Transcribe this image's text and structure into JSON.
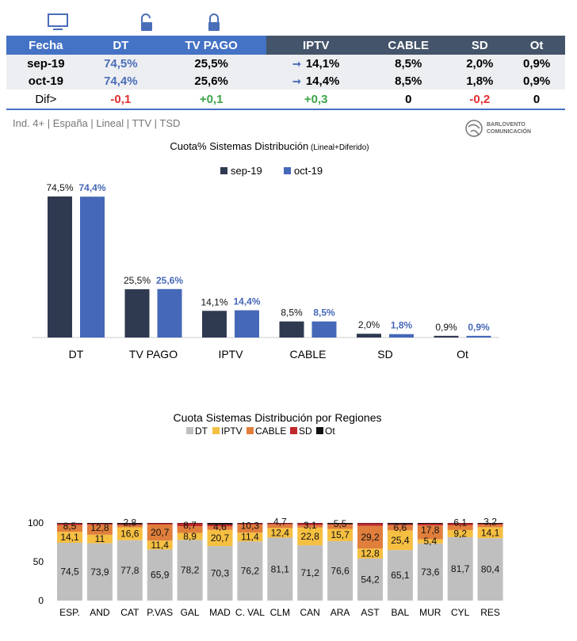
{
  "icons": {
    "dt": "monitor-icon",
    "tvpago_open": "unlocked-padlock-icon",
    "tvpago": "padlock-icon",
    "colors": {
      "header_left": "#4472C4",
      "header_right": "#44546A",
      "negative": "#E03030",
      "positive": "#3BA548"
    }
  },
  "table": {
    "headers": [
      "Fecha",
      "DT",
      "TV PAGO",
      "IPTV",
      "CABLE",
      "SD",
      "Ot"
    ],
    "rows": [
      {
        "label": "sep-19",
        "values": [
          "74,5%",
          "25,5%",
          "14,1%",
          "8,5%",
          "2,0%",
          "0,9%"
        ]
      },
      {
        "label": "oct-19",
        "values": [
          "74,4%",
          "25,6%",
          "14,4%",
          "8,5%",
          "1,8%",
          "0,9%"
        ]
      }
    ],
    "dif": {
      "label": "Dif>",
      "values": [
        "-0,1",
        "+0,1",
        "+0,3",
        "0",
        "-0,2",
        "0"
      ]
    }
  },
  "footer": "Ind. 4+ | España | Lineal | TTV | TSD",
  "logo": {
    "line1": "BARLOVENTO",
    "line2": "COMUNICACIÓN"
  },
  "chart_data": [
    {
      "type": "bar",
      "title": "Cuota% Sistemas Distribución",
      "subtitle": "(Lineal+Diferido)",
      "categories": [
        "DT",
        "TV PAGO",
        "IPTV",
        "CABLE",
        "SD",
        "Ot"
      ],
      "series": [
        {
          "name": "sep-19",
          "color": "#2F3A50",
          "values": [
            74.5,
            25.5,
            14.1,
            8.5,
            2.0,
            0.9
          ],
          "labels": [
            "74,5%",
            "25,5%",
            "14,1%",
            "8,5%",
            "2,0%",
            "0,9%"
          ]
        },
        {
          "name": "oct-19",
          "color": "#4668B8",
          "values": [
            74.4,
            25.6,
            14.4,
            8.5,
            1.8,
            0.9
          ],
          "labels": [
            "74,4%",
            "25,6%",
            "14,4%",
            "8,5%",
            "1,8%",
            "0,9%"
          ]
        }
      ],
      "legend": "top",
      "grid": false
    },
    {
      "type": "stacked-bar",
      "title": "Cuota Sistemas Distribución por  Regiones",
      "categories": [
        "ESP.",
        "AND",
        "CAT",
        "P.VAS",
        "GAL",
        "MAD",
        "C. VAL",
        "CLM",
        "CAN",
        "ARA",
        "AST",
        "BAL",
        "MUR",
        "CYL",
        "RES"
      ],
      "ylim": [
        0,
        100
      ],
      "yticks": [
        "0",
        "50",
        "100"
      ],
      "legend": "top",
      "grid": false,
      "series": [
        {
          "name": "DT",
          "color": "#BFBFBF",
          "values": [
            74.5,
            73.9,
            77.8,
            65.9,
            78.2,
            70.3,
            76.2,
            81.1,
            71.2,
            76.6,
            54.2,
            65.1,
            73.6,
            81.7,
            80.4
          ],
          "labels": [
            "74,5",
            "73,9",
            "77,8",
            "65,9",
            "78,2",
            "70,3",
            "76,2",
            "81,1",
            "71,2",
            "76,6",
            "54,2",
            "65,1",
            "73,6",
            "81,7",
            "80,4"
          ]
        },
        {
          "name": "IPTV",
          "color": "#F5BF42",
          "values": [
            14.1,
            11,
            16.6,
            11.4,
            8.9,
            20.7,
            11.4,
            12.4,
            22.8,
            15.7,
            12.8,
            25.4,
            5.4,
            9.2,
            14.1
          ],
          "labels": [
            "14,1",
            "11",
            "16,6",
            "11,4",
            "8,9",
            "20,7",
            "11,4",
            "12,4",
            "22,8",
            "15,7",
            "12,8",
            "25,4",
            "5,4",
            "9,2",
            "14,1"
          ]
        },
        {
          "name": "CABLE",
          "color": "#E07E3C",
          "values": [
            8.5,
            12.8,
            2.8,
            20.7,
            8.7,
            4.6,
            10.3,
            4.7,
            3.1,
            5.5,
            29.2,
            6.6,
            17.8,
            6.1,
            3.2
          ],
          "labels": [
            "8,5",
            "12,8",
            "2,8",
            "20,7",
            "8,7",
            "4,6",
            "10,3",
            "4,7",
            "3,1",
            "5,5",
            "29,2",
            "6,6",
            "17,8",
            "6,1",
            "3,2"
          ]
        },
        {
          "name": "SD",
          "color": "#C0282C",
          "values": [
            2.0,
            1.3,
            1.3,
            1.5,
            3.7,
            2.4,
            1.4,
            1.3,
            2.4,
            0.7,
            3.3,
            1.4,
            2.2,
            2.5,
            1.3
          ]
        },
        {
          "name": "Ot",
          "color": "#111111",
          "values": [
            0.9,
            1.0,
            1.5,
            0.5,
            0.5,
            2.0,
            0.7,
            0.5,
            0.5,
            1.5,
            0.5,
            1.5,
            1.0,
            0.5,
            1.0
          ]
        }
      ]
    }
  ]
}
